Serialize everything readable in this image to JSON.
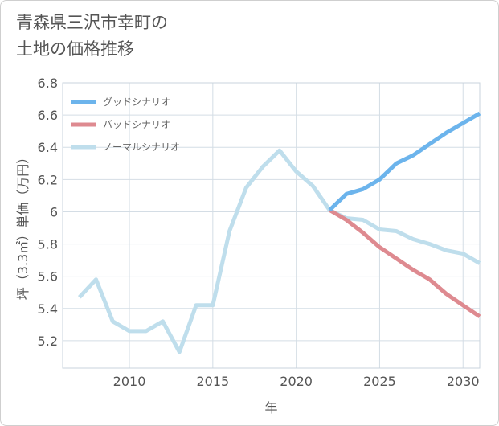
{
  "title": {
    "line1": "青森県三沢市幸町の",
    "line2": "土地の価格推移"
  },
  "chart_data": {
    "type": "line",
    "title": "青森県三沢市幸町の土地の価格推移",
    "xlabel": "年",
    "ylabel": "坪（3.3㎡）単価（万円）",
    "xlim": [
      2006,
      2031
    ],
    "ylim": [
      5.03,
      6.8
    ],
    "xticks": [
      2010,
      2015,
      2020,
      2025,
      2030
    ],
    "yticks": [
      5.2,
      5.4,
      5.6,
      5.8,
      6,
      6.2,
      6.4,
      6.6,
      6.8
    ],
    "ytick_labels": [
      "5.2",
      "5.4",
      "5.6",
      "5.8",
      "6",
      "6.2",
      "6.4",
      "6.6",
      "6.8"
    ],
    "grid": true,
    "legend_position": "top-left",
    "series": [
      {
        "name": "グッドシナリオ",
        "color": "#6cb4ec",
        "x": [
          2022,
          2023,
          2024,
          2025,
          2026,
          2027,
          2028,
          2029,
          2030,
          2031
        ],
        "values": [
          6.01,
          6.11,
          6.14,
          6.2,
          6.3,
          6.35,
          6.42,
          6.49,
          6.55,
          6.61
        ]
      },
      {
        "name": "バッドシナリオ",
        "color": "#de8a90",
        "x": [
          2022,
          2023,
          2024,
          2025,
          2026,
          2027,
          2028,
          2029,
          2030,
          2031
        ],
        "values": [
          6.01,
          5.95,
          5.87,
          5.78,
          5.71,
          5.64,
          5.58,
          5.49,
          5.42,
          5.35
        ]
      },
      {
        "name": "ノーマルシナリオ",
        "color": "#bfdeec",
        "x": [
          2007,
          2008,
          2009,
          2010,
          2011,
          2012,
          2013,
          2014,
          2015,
          2016,
          2017,
          2018,
          2019,
          2020,
          2021,
          2022,
          2023,
          2024,
          2025,
          2026,
          2027,
          2028,
          2029,
          2030,
          2031
        ],
        "values": [
          5.47,
          5.58,
          5.32,
          5.26,
          5.26,
          5.32,
          5.13,
          5.42,
          5.42,
          5.88,
          6.15,
          6.28,
          6.38,
          6.25,
          6.16,
          6.01,
          5.96,
          5.95,
          5.89,
          5.88,
          5.83,
          5.8,
          5.76,
          5.74,
          5.68
        ]
      }
    ]
  }
}
